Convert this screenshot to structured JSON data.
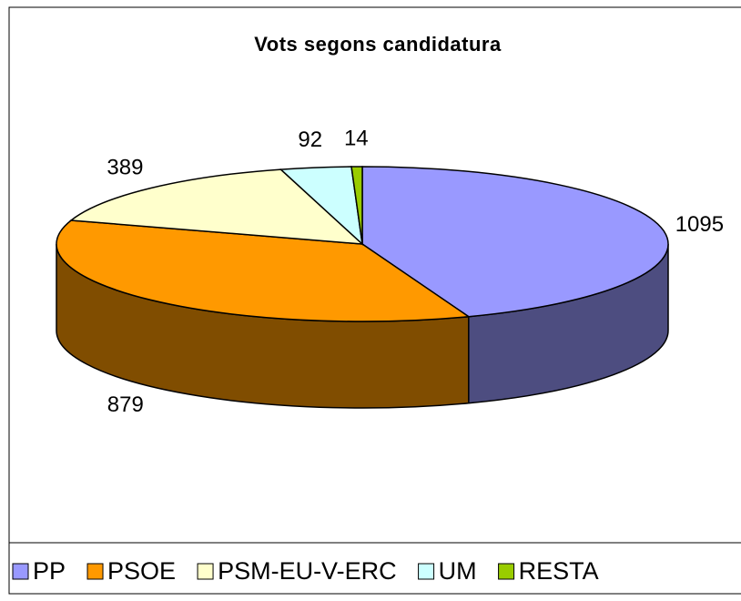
{
  "chart_data": {
    "type": "pie3d",
    "title": "Vots segons candidatura",
    "categories": [
      "PP",
      "PSOE",
      "PSM-EU-V-ERC",
      "UM",
      "RESTA"
    ],
    "values": [
      1095,
      879,
      389,
      92,
      14
    ],
    "colors": [
      "#9999ff",
      "#ff9900",
      "#ffffcc",
      "#ccffff",
      "#99cc00"
    ],
    "legend": "bottom"
  }
}
